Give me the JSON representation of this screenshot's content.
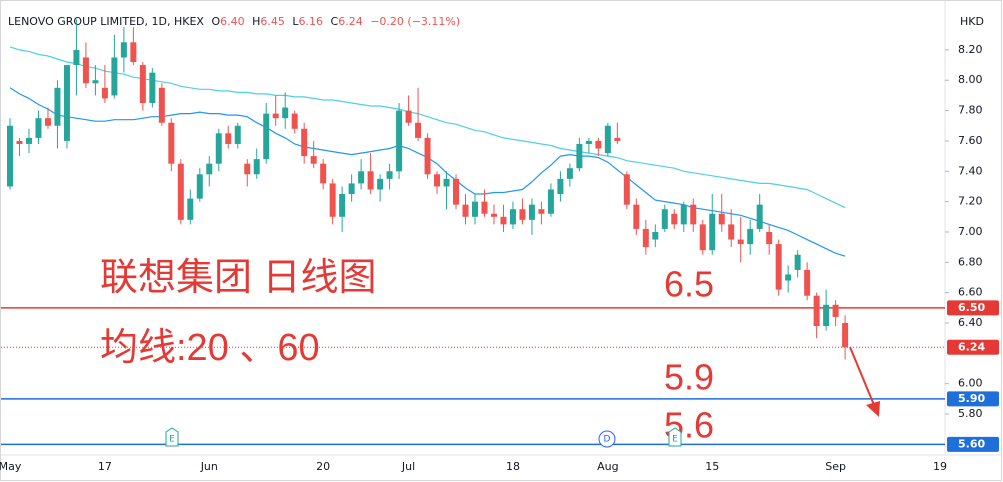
{
  "chart_data": {
    "type": "candlestick",
    "header": {
      "name": "LENOVO GROUP LIMITED, 1D, HKEX",
      "o_label": "O",
      "o": "6.40",
      "h_label": "H",
      "h": "6.45",
      "l_label": "L",
      "l": "6.16",
      "c_label": "C",
      "c": "6.24",
      "change": "−0.20 (−3.11%)"
    },
    "currency": "HKD",
    "categories": [
      "May",
      null,
      null,
      null,
      null,
      null,
      null,
      null,
      null,
      null,
      "17",
      null,
      null,
      null,
      null,
      null,
      null,
      null,
      null,
      null,
      null,
      "Jun",
      null,
      null,
      null,
      null,
      null,
      null,
      null,
      null,
      null,
      null,
      null,
      "20",
      null,
      null,
      null,
      null,
      null,
      null,
      null,
      null,
      "Jul",
      null,
      null,
      null,
      null,
      null,
      null,
      null,
      null,
      null,
      null,
      "18",
      null,
      null,
      null,
      null,
      null,
      null,
      null,
      null,
      null,
      "Aug",
      null,
      null,
      null,
      null,
      null,
      null,
      null,
      null,
      null,
      null,
      "15",
      null,
      null,
      null,
      null,
      null,
      null,
      null,
      null,
      null,
      null,
      null,
      null,
      "Sep",
      null,
      null,
      null,
      null,
      null,
      null,
      null,
      null,
      null,
      null,
      "19"
    ],
    "open": [
      7.3,
      7.6,
      7.58,
      7.62,
      7.75,
      7.7,
      7.6,
      8.1,
      8.15,
      7.98,
      7.95,
      7.9,
      8.15,
      8.25,
      8.1,
      7.85,
      7.95,
      7.72,
      7.45,
      7.08,
      7.22,
      7.38,
      7.45,
      7.65,
      7.58,
      7.45,
      7.38,
      7.48,
      7.78,
      7.75,
      7.78,
      7.68,
      7.5,
      7.45,
      7.32,
      7.1,
      7.25,
      7.32,
      7.4,
      7.28,
      7.35,
      7.4,
      7.8,
      7.72,
      7.62,
      7.38,
      7.3,
      7.35,
      7.18,
      7.1,
      7.2,
      7.12,
      7.1,
      7.05,
      7.15,
      7.08,
      7.15,
      7.12,
      7.25,
      7.35,
      7.42,
      7.58,
      7.6,
      7.52,
      7.62,
      7.38,
      7.18,
      7.02,
      6.95,
      7.02,
      7.12,
      7.05,
      7.18,
      7.05,
      6.88,
      7.12,
      7.05,
      6.95,
      6.92,
      7.02,
      7.0,
      6.92,
      6.68,
      6.75,
      6.75,
      6.58,
      6.38,
      6.52,
      6.4,
      null,
      null,
      null,
      null,
      null,
      null,
      null,
      null,
      null,
      null
    ],
    "high": [
      7.75,
      7.62,
      7.68,
      7.8,
      7.82,
      8.0,
      8.1,
      8.4,
      8.25,
      8.1,
      8.1,
      8.3,
      8.35,
      8.35,
      8.12,
      8.08,
      7.98,
      7.75,
      7.48,
      7.28,
      7.42,
      7.5,
      7.68,
      7.7,
      7.72,
      7.48,
      7.55,
      7.85,
      7.9,
      7.92,
      7.8,
      7.72,
      7.6,
      7.48,
      7.35,
      7.3,
      7.38,
      7.48,
      7.52,
      7.38,
      7.45,
      7.85,
      7.9,
      7.95,
      7.65,
      7.4,
      7.4,
      7.38,
      7.25,
      7.25,
      7.28,
      7.18,
      7.18,
      7.2,
      7.22,
      7.22,
      7.2,
      7.32,
      7.4,
      7.45,
      7.62,
      7.62,
      7.62,
      7.72,
      7.72,
      7.4,
      7.22,
      7.08,
      7.05,
      7.18,
      7.15,
      7.2,
      7.22,
      7.08,
      7.25,
      7.25,
      7.15,
      7.1,
      7.08,
      7.25,
      7.05,
      6.95,
      6.78,
      6.88,
      6.8,
      6.6,
      6.62,
      6.55,
      6.45,
      null,
      null,
      null,
      null,
      null,
      null,
      null,
      null,
      null,
      null
    ],
    "low": [
      7.28,
      7.5,
      7.52,
      7.58,
      7.68,
      7.55,
      7.55,
      7.9,
      7.95,
      7.9,
      7.85,
      7.88,
      8.05,
      8.1,
      7.8,
      7.82,
      7.7,
      7.4,
      7.05,
      7.05,
      7.2,
      7.3,
      7.4,
      7.55,
      7.55,
      7.3,
      7.35,
      7.45,
      7.7,
      7.68,
      7.65,
      7.45,
      7.42,
      7.28,
      7.05,
      7.0,
      7.2,
      7.28,
      7.25,
      7.2,
      7.28,
      7.35,
      7.7,
      7.6,
      7.35,
      7.25,
      7.15,
      7.15,
      7.05,
      7.05,
      7.1,
      7.05,
      7.0,
      7.02,
      7.05,
      6.98,
      7.05,
      7.1,
      7.2,
      7.3,
      7.4,
      7.52,
      7.5,
      7.5,
      7.58,
      7.15,
      6.98,
      6.85,
      6.9,
      7.0,
      7.02,
      7.0,
      7.0,
      6.85,
      6.85,
      7.0,
      6.9,
      6.8,
      6.85,
      7.0,
      6.85,
      6.58,
      6.6,
      6.7,
      6.55,
      6.3,
      6.35,
      6.38,
      6.16,
      null,
      null,
      null,
      null,
      null,
      null,
      null,
      null,
      null,
      null
    ],
    "close": [
      7.7,
      7.58,
      7.62,
      7.75,
      7.7,
      7.95,
      8.1,
      8.2,
      7.98,
      8.0,
      7.88,
      8.15,
      8.25,
      8.12,
      7.85,
      8.05,
      7.72,
      7.45,
      7.08,
      7.22,
      7.38,
      7.45,
      7.65,
      7.58,
      7.7,
      7.38,
      7.48,
      7.78,
      7.75,
      7.82,
      7.68,
      7.5,
      7.45,
      7.32,
      7.1,
      7.25,
      7.32,
      7.4,
      7.28,
      7.35,
      7.4,
      7.8,
      7.72,
      7.62,
      7.38,
      7.3,
      7.35,
      7.18,
      7.1,
      7.2,
      7.12,
      7.1,
      7.05,
      7.15,
      7.08,
      7.18,
      7.12,
      7.28,
      7.35,
      7.42,
      7.58,
      7.6,
      7.55,
      7.7,
      7.6,
      7.18,
      7.02,
      6.9,
      7.0,
      7.15,
      7.05,
      7.18,
      7.05,
      6.88,
      7.12,
      7.05,
      6.95,
      6.92,
      7.02,
      7.18,
      6.92,
      6.62,
      6.72,
      6.85,
      6.58,
      6.38,
      6.52,
      6.44,
      6.24,
      null,
      null,
      null,
      null,
      null,
      null,
      null,
      null,
      null,
      null
    ],
    "up_color": "#26a69a",
    "down_color": "#ef5350",
    "lines": [
      {
        "color": "#2196f3",
        "values": [
          7.95,
          7.91,
          7.88,
          7.84,
          7.81,
          7.77,
          7.76,
          7.75,
          7.74,
          7.73,
          7.73,
          7.74,
          7.74,
          7.74,
          7.75,
          7.76,
          7.76,
          7.77,
          7.78,
          7.78,
          7.79,
          7.78,
          7.78,
          7.77,
          7.77,
          7.76,
          7.72,
          7.69,
          7.65,
          7.62,
          7.58,
          7.56,
          7.55,
          7.54,
          7.53,
          7.52,
          7.51,
          7.52,
          7.53,
          7.54,
          7.55,
          7.57,
          7.55,
          7.52,
          7.49,
          7.45,
          7.39,
          7.34,
          7.29,
          7.25,
          7.25,
          7.26,
          7.26,
          7.27,
          7.28,
          7.33,
          7.39,
          7.44,
          7.5,
          7.51,
          7.5,
          7.5,
          7.49,
          7.46,
          7.41,
          7.36,
          7.31,
          7.26,
          7.21,
          7.2,
          7.19,
          7.18,
          7.16,
          7.15,
          7.14,
          7.13,
          7.12,
          7.11,
          7.09,
          7.07,
          7.05,
          7.03,
          7.01,
          6.98,
          6.95,
          6.92,
          6.89,
          6.86,
          6.84,
          null,
          null,
          null,
          null,
          null,
          null,
          null,
          null,
          null,
          null
        ]
      },
      {
        "color": "#4dd0e1",
        "values": [
          8.22,
          8.2,
          8.19,
          8.17,
          8.16,
          8.14,
          8.12,
          8.11,
          8.09,
          8.08,
          8.06,
          8.05,
          8.04,
          8.02,
          8.01,
          8.0,
          7.99,
          7.98,
          7.96,
          7.95,
          7.94,
          7.94,
          7.93,
          7.93,
          7.92,
          7.92,
          7.91,
          7.91,
          7.9,
          7.9,
          7.89,
          7.89,
          7.88,
          7.87,
          7.87,
          7.86,
          7.85,
          7.84,
          7.83,
          7.83,
          7.82,
          7.81,
          7.79,
          7.78,
          7.76,
          7.74,
          7.72,
          7.71,
          7.69,
          7.67,
          7.66,
          7.64,
          7.62,
          7.61,
          7.6,
          7.59,
          7.58,
          7.57,
          7.55,
          7.54,
          7.53,
          7.52,
          7.51,
          7.5,
          7.49,
          7.47,
          7.46,
          7.45,
          7.44,
          7.43,
          7.42,
          7.4,
          7.39,
          7.38,
          7.37,
          7.36,
          7.35,
          7.34,
          7.33,
          7.32,
          7.32,
          7.31,
          7.3,
          7.29,
          7.28,
          7.25,
          7.22,
          7.19,
          7.16,
          null,
          null,
          null,
          null,
          null,
          null,
          null,
          null,
          null,
          null
        ]
      }
    ],
    "ylim": [
      5.53,
      8.43
    ],
    "yticks": [
      {
        "value": 5.8,
        "label": "5.80"
      },
      {
        "value": 6.0,
        "label": "6.00"
      },
      {
        "value": 6.4,
        "label": "6.40"
      },
      {
        "value": 6.6,
        "label": "6.60"
      },
      {
        "value": 6.8,
        "label": "6.80"
      },
      {
        "value": 7.0,
        "label": "7.00"
      },
      {
        "value": 7.2,
        "label": "7.20"
      },
      {
        "value": 7.4,
        "label": "7.40"
      },
      {
        "value": 7.6,
        "label": "7.60"
      },
      {
        "value": 7.8,
        "label": "7.80"
      },
      {
        "value": 8.0,
        "label": "8.00"
      },
      {
        "value": 8.2,
        "label": "8.20"
      }
    ],
    "levels": [
      {
        "value": 6.5,
        "label": "6.50",
        "color": "#e53935"
      },
      {
        "value": 5.9,
        "label": "5.90",
        "color": "#1e6fd9"
      },
      {
        "value": 5.6,
        "label": "5.60",
        "color": "#1e6fd9"
      }
    ],
    "last_price": {
      "value": 6.24,
      "label": "6.24",
      "color": "#e53935"
    },
    "annotations": {
      "title": "联想集团 日线图",
      "ma_note": "均线:20 、60",
      "level_a": "6.5",
      "level_b": "5.9",
      "level_c": "5.6"
    },
    "events": [
      "E",
      "D",
      "E"
    ]
  }
}
